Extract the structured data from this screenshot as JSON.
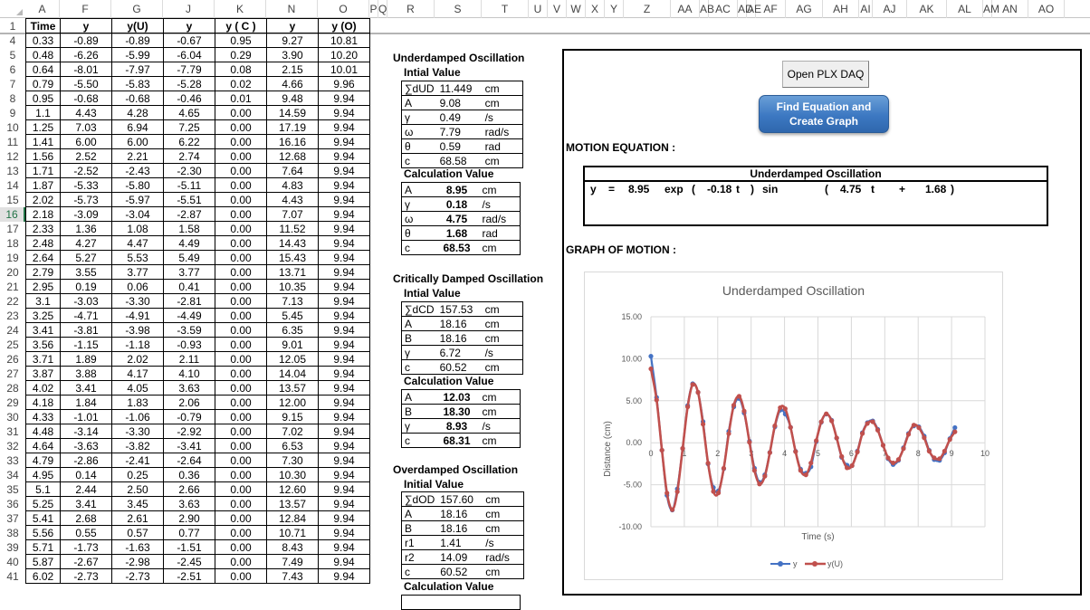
{
  "column_headers": [
    "A",
    "F",
    "G",
    "J",
    "K",
    "N",
    "O",
    "P",
    "Q",
    "R",
    "S",
    "T",
    "U",
    "V",
    "W",
    "X",
    "Y",
    "Z",
    "AA",
    "AB",
    "AC",
    "AD",
    "AE",
    "AF",
    "AG",
    "AH",
    "AI",
    "AJ",
    "AK",
    "AL",
    "AM",
    "AN",
    "AO"
  ],
  "data_table": {
    "headers": [
      "Time",
      "y",
      "y(U)",
      "y",
      "y ( C )",
      "y",
      "y (O)"
    ],
    "header_row_num": "1",
    "selected_row": "16",
    "rows": [
      {
        "n": "4",
        "cells": [
          "0.33",
          "-0.89",
          "-0.89",
          "-0.67",
          "0.95",
          "9.27",
          "10.81"
        ]
      },
      {
        "n": "5",
        "cells": [
          "0.48",
          "-6.26",
          "-5.99",
          "-6.04",
          "0.29",
          "3.90",
          "10.20"
        ]
      },
      {
        "n": "6",
        "cells": [
          "0.64",
          "-8.01",
          "-7.97",
          "-7.79",
          "0.08",
          "2.15",
          "10.01"
        ]
      },
      {
        "n": "7",
        "cells": [
          "0.79",
          "-5.50",
          "-5.83",
          "-5.28",
          "0.02",
          "4.66",
          "9.96"
        ]
      },
      {
        "n": "8",
        "cells": [
          "0.95",
          "-0.68",
          "-0.68",
          "-0.46",
          "0.01",
          "9.48",
          "9.94"
        ]
      },
      {
        "n": "9",
        "cells": [
          "1.1",
          "4.43",
          "4.28",
          "4.65",
          "0.00",
          "14.59",
          "9.94"
        ]
      },
      {
        "n": "10",
        "cells": [
          "1.25",
          "7.03",
          "6.94",
          "7.25",
          "0.00",
          "17.19",
          "9.94"
        ]
      },
      {
        "n": "11",
        "cells": [
          "1.41",
          "6.00",
          "6.00",
          "6.22",
          "0.00",
          "16.16",
          "9.94"
        ]
      },
      {
        "n": "12",
        "cells": [
          "1.56",
          "2.52",
          "2.21",
          "2.74",
          "0.00",
          "12.68",
          "9.94"
        ]
      },
      {
        "n": "13",
        "cells": [
          "1.71",
          "-2.52",
          "-2.43",
          "-2.30",
          "0.00",
          "7.64",
          "9.94"
        ]
      },
      {
        "n": "14",
        "cells": [
          "1.87",
          "-5.33",
          "-5.80",
          "-5.11",
          "0.00",
          "4.83",
          "9.94"
        ]
      },
      {
        "n": "15",
        "cells": [
          "2.02",
          "-5.73",
          "-5.97",
          "-5.51",
          "0.00",
          "4.43",
          "9.94"
        ]
      },
      {
        "n": "16",
        "cells": [
          "2.18",
          "-3.09",
          "-3.04",
          "-2.87",
          "0.00",
          "7.07",
          "9.94"
        ]
      },
      {
        "n": "17",
        "cells": [
          "2.33",
          "1.36",
          "1.08",
          "1.58",
          "0.00",
          "11.52",
          "9.94"
        ]
      },
      {
        "n": "18",
        "cells": [
          "2.48",
          "4.27",
          "4.47",
          "4.49",
          "0.00",
          "14.43",
          "9.94"
        ]
      },
      {
        "n": "19",
        "cells": [
          "2.64",
          "5.27",
          "5.53",
          "5.49",
          "0.00",
          "15.43",
          "9.94"
        ]
      },
      {
        "n": "20",
        "cells": [
          "2.79",
          "3.55",
          "3.77",
          "3.77",
          "0.00",
          "13.71",
          "9.94"
        ]
      },
      {
        "n": "21",
        "cells": [
          "2.95",
          "0.19",
          "0.06",
          "0.41",
          "0.00",
          "10.35",
          "9.94"
        ]
      },
      {
        "n": "22",
        "cells": [
          "3.1",
          "-3.03",
          "-3.30",
          "-2.81",
          "0.00",
          "7.13",
          "9.94"
        ]
      },
      {
        "n": "23",
        "cells": [
          "3.25",
          "-4.71",
          "-4.91",
          "-4.49",
          "0.00",
          "5.45",
          "9.94"
        ]
      },
      {
        "n": "24",
        "cells": [
          "3.41",
          "-3.81",
          "-3.98",
          "-3.59",
          "0.00",
          "6.35",
          "9.94"
        ]
      },
      {
        "n": "25",
        "cells": [
          "3.56",
          "-1.15",
          "-1.18",
          "-0.93",
          "0.00",
          "9.01",
          "9.94"
        ]
      },
      {
        "n": "26",
        "cells": [
          "3.71",
          "1.89",
          "2.02",
          "2.11",
          "0.00",
          "12.05",
          "9.94"
        ]
      },
      {
        "n": "27",
        "cells": [
          "3.87",
          "3.88",
          "4.17",
          "4.10",
          "0.00",
          "14.04",
          "9.94"
        ]
      },
      {
        "n": "28",
        "cells": [
          "4.02",
          "3.41",
          "4.05",
          "3.63",
          "0.00",
          "13.57",
          "9.94"
        ]
      },
      {
        "n": "29",
        "cells": [
          "4.18",
          "1.84",
          "1.83",
          "2.06",
          "0.00",
          "12.00",
          "9.94"
        ]
      },
      {
        "n": "30",
        "cells": [
          "4.33",
          "-1.01",
          "-1.06",
          "-0.79",
          "0.00",
          "9.15",
          "9.94"
        ]
      },
      {
        "n": "31",
        "cells": [
          "4.48",
          "-3.14",
          "-3.30",
          "-2.92",
          "0.00",
          "7.02",
          "9.94"
        ]
      },
      {
        "n": "32",
        "cells": [
          "4.64",
          "-3.63",
          "-3.82",
          "-3.41",
          "0.00",
          "6.53",
          "9.94"
        ]
      },
      {
        "n": "33",
        "cells": [
          "4.79",
          "-2.86",
          "-2.41",
          "-2.64",
          "0.00",
          "7.30",
          "9.94"
        ]
      },
      {
        "n": "34",
        "cells": [
          "4.95",
          "0.14",
          "0.25",
          "0.36",
          "0.00",
          "10.30",
          "9.94"
        ]
      },
      {
        "n": "35",
        "cells": [
          "5.1",
          "2.44",
          "2.50",
          "2.66",
          "0.00",
          "12.60",
          "9.94"
        ]
      },
      {
        "n": "36",
        "cells": [
          "5.25",
          "3.41",
          "3.45",
          "3.63",
          "0.00",
          "13.57",
          "9.94"
        ]
      },
      {
        "n": "37",
        "cells": [
          "5.41",
          "2.68",
          "2.61",
          "2.90",
          "0.00",
          "12.84",
          "9.94"
        ]
      },
      {
        "n": "38",
        "cells": [
          "5.56",
          "0.55",
          "0.57",
          "0.77",
          "0.00",
          "10.71",
          "9.94"
        ]
      },
      {
        "n": "39",
        "cells": [
          "5.71",
          "-1.73",
          "-1.63",
          "-1.51",
          "0.00",
          "8.43",
          "9.94"
        ]
      },
      {
        "n": "40",
        "cells": [
          "5.87",
          "-2.67",
          "-2.98",
          "-2.45",
          "0.00",
          "7.49",
          "9.94"
        ]
      },
      {
        "n": "41",
        "cells": [
          "6.02",
          "-2.73",
          "-2.73",
          "-2.51",
          "0.00",
          "7.43",
          "9.94"
        ]
      }
    ]
  },
  "underdamped": {
    "title": "Underdamped Oscillation",
    "initial_label": "Intial Value",
    "initial": [
      {
        "k": "∑dUD",
        "v": "11.449",
        "u": "cm"
      },
      {
        "k": "A",
        "v": "9.08",
        "u": "cm"
      },
      {
        "k": "γ",
        "v": "0.49",
        "u": "/s"
      },
      {
        "k": "ω",
        "v": "7.79",
        "u": "rad/s"
      },
      {
        "k": "θ",
        "v": "0.59",
        "u": "rad"
      },
      {
        "k": "c",
        "v": "68.58",
        "u": "cm"
      }
    ],
    "calc_label": "Calculation Value",
    "calc": [
      {
        "k": "A",
        "v": "8.95",
        "u": "cm"
      },
      {
        "k": "γ",
        "v": "0.18",
        "u": "/s"
      },
      {
        "k": "ω",
        "v": "4.75",
        "u": "rad/s"
      },
      {
        "k": "θ",
        "v": "1.68",
        "u": "rad"
      },
      {
        "k": "c",
        "v": "68.53",
        "u": "cm"
      }
    ]
  },
  "critically_damped": {
    "title": "Critically Damped Oscillation",
    "initial_label": "Intial Value",
    "initial": [
      {
        "k": "∑dCD",
        "v": "157.53",
        "u": "cm"
      },
      {
        "k": "A",
        "v": "18.16",
        "u": "cm"
      },
      {
        "k": "B",
        "v": "18.16",
        "u": "cm"
      },
      {
        "k": "γ",
        "v": "6.72",
        "u": "/s"
      },
      {
        "k": "c",
        "v": "60.52",
        "u": "cm"
      }
    ],
    "calc_label": "Calculation Value",
    "calc": [
      {
        "k": "A",
        "v": "12.03",
        "u": "cm"
      },
      {
        "k": "B",
        "v": "18.30",
        "u": "cm"
      },
      {
        "k": "γ",
        "v": "8.93",
        "u": "/s"
      },
      {
        "k": "c",
        "v": "68.31",
        "u": "cm"
      }
    ]
  },
  "overdamped": {
    "title": "Overdamped Oscillation",
    "initial_label": "Initial Value",
    "initial": [
      {
        "k": "∑dOD",
        "v": "157.60",
        "u": "cm"
      },
      {
        "k": "A",
        "v": "18.16",
        "u": "cm"
      },
      {
        "k": "B",
        "v": "18.16",
        "u": "cm"
      },
      {
        "k": "r1",
        "v": "1.41",
        "u": "/s"
      },
      {
        "k": "r2",
        "v": "14.09",
        "u": "rad/s"
      },
      {
        "k": "c",
        "v": "60.52",
        "u": "cm"
      }
    ],
    "calc_label": "Calculation Value"
  },
  "panel": {
    "open_plx_label": "Open PLX DAQ",
    "find_eq_label_1": "Find Equation and",
    "find_eq_label_2": "Create Graph",
    "motion_eq_label": "MOTION EQUATION :",
    "graph_label": "GRAPH OF MOTION :",
    "equation": {
      "title": "Underdamped Oscillation",
      "tokens": [
        "y",
        "=",
        "8.95",
        "exp",
        "(",
        "-0.18",
        "t",
        ")",
        "sin",
        "(",
        "4.75",
        "t",
        "+",
        "1.68",
        ")"
      ]
    }
  },
  "chart_data": {
    "type": "line",
    "title": "Underdamped Oscillation",
    "xlabel": "Time (s)",
    "ylabel": "Distance (cm)",
    "xlim": [
      0,
      10
    ],
    "ylim": [
      -10,
      15
    ],
    "x_ticks": [
      "0",
      "1",
      "2",
      "3",
      "4",
      "5",
      "6",
      "7",
      "8",
      "9",
      "10"
    ],
    "y_ticks": [
      "15.00",
      "10.00",
      "5.00",
      "0.00",
      "-5.00",
      "-10.00"
    ],
    "grid": true,
    "legend_position": "bottom",
    "colors": {
      "y": "#4472c4",
      "y(U)": "#c0504d"
    },
    "x": [
      0,
      0.17,
      0.33,
      0.48,
      0.64,
      0.79,
      0.95,
      1.1,
      1.25,
      1.41,
      1.56,
      1.71,
      1.87,
      2.02,
      2.18,
      2.33,
      2.48,
      2.64,
      2.79,
      2.95,
      3.1,
      3.25,
      3.41,
      3.56,
      3.71,
      3.87,
      4.02,
      4.18,
      4.33,
      4.48,
      4.64,
      4.79,
      4.95,
      5.1,
      5.25,
      5.41,
      5.56,
      5.71,
      5.87,
      6.02,
      6.18,
      6.33,
      6.48,
      6.64,
      6.79,
      6.95,
      7.1,
      7.25,
      7.41,
      7.56,
      7.71,
      7.87,
      8.02,
      8.18,
      8.33,
      8.48,
      8.64,
      8.79,
      8.95,
      9.1
    ],
    "series": [
      {
        "name": "y",
        "values": [
          10.3,
          5.4,
          -0.89,
          -6.26,
          -8.01,
          -5.5,
          -0.68,
          4.43,
          7.03,
          6.0,
          2.52,
          -2.52,
          -5.33,
          -5.73,
          -3.09,
          1.36,
          4.27,
          5.27,
          3.55,
          0.19,
          -3.03,
          -4.71,
          -3.81,
          -1.15,
          1.89,
          3.88,
          3.41,
          1.84,
          -1.01,
          -3.14,
          -3.63,
          -2.86,
          0.14,
          2.44,
          3.41,
          2.68,
          0.55,
          -1.73,
          -2.67,
          -2.73,
          -1.0,
          1.2,
          2.4,
          2.6,
          1.6,
          -0.3,
          -1.9,
          -2.6,
          -2.1,
          -0.6,
          1.1,
          2.0,
          1.9,
          0.8,
          -0.9,
          -2.0,
          -2.1,
          -1.2,
          0.5,
          1.8
        ]
      },
      {
        "name": "y(U)",
        "values": [
          8.8,
          5.1,
          -0.89,
          -5.99,
          -7.97,
          -5.83,
          -0.68,
          4.28,
          6.94,
          6.0,
          2.21,
          -2.43,
          -5.8,
          -5.97,
          -3.04,
          1.08,
          4.47,
          5.53,
          3.77,
          0.06,
          -3.3,
          -4.91,
          -3.98,
          -1.18,
          2.02,
          4.17,
          4.05,
          1.83,
          -1.06,
          -3.3,
          -3.82,
          -2.41,
          0.25,
          2.5,
          3.45,
          2.61,
          0.57,
          -1.63,
          -2.98,
          -2.73,
          -1.1,
          1.1,
          2.3,
          2.5,
          1.5,
          -0.3,
          -1.8,
          -2.4,
          -2.0,
          -0.7,
          1.0,
          2.1,
          1.8,
          0.6,
          -1.0,
          -1.8,
          -1.9,
          -1.0,
          0.4,
          1.3
        ]
      }
    ]
  }
}
